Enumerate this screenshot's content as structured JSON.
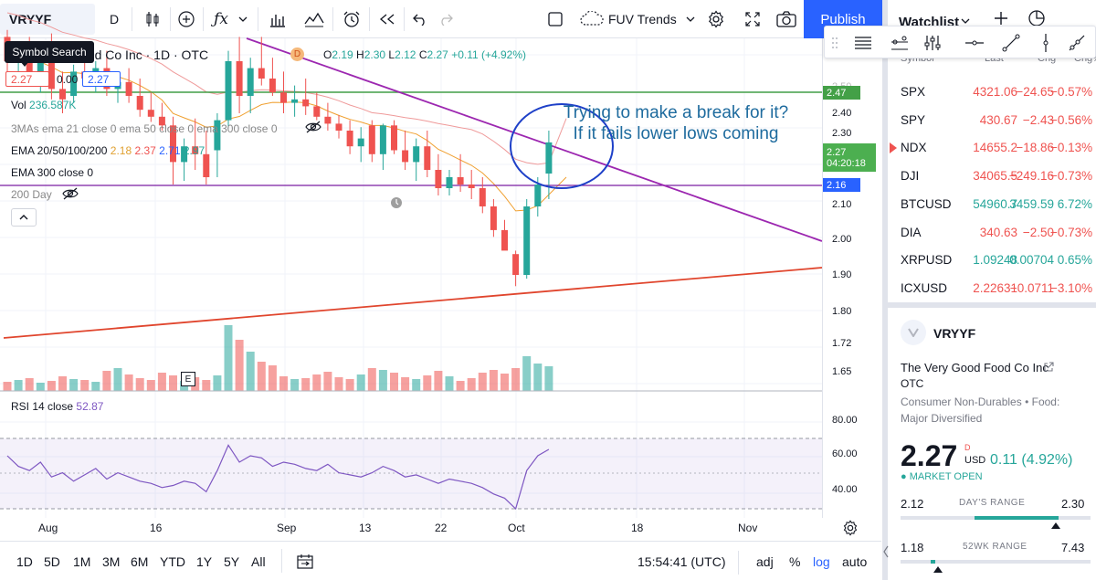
{
  "toolbar": {
    "symbol": "VRYYF",
    "interval": "D",
    "indicators_label": "FUV Trends",
    "publish_label": "Publish"
  },
  "tooltip": "Symbol Search",
  "legend": {
    "title": "od Food Co Inc · 1D · OTC",
    "o_label": "O",
    "o": "2.19",
    "h_label": "H",
    "h": "2.30",
    "l_label": "L",
    "l": "2.12",
    "c_label": "C",
    "c": "2.27",
    "change": "+0.11 (+4.92%)",
    "bid": "2.27",
    "spread": "0.00",
    "ask": "2.27",
    "vol_label": "Vol",
    "vol": "236.587K",
    "mas": "3MAs ema 21 close 0 ema 50 close 0 ema 300 close 0",
    "ema_label": "EMA 20/50/100/200",
    "ema_vals": [
      "2.18",
      "2.37",
      "2.71",
      "2.97"
    ],
    "ema300": "EMA 300 close 0",
    "day200": "200 Day",
    "rsi_label": "RSI 14 close",
    "rsi_val": "52.87",
    "earnings_marker": "E",
    "dividend_marker": "D"
  },
  "annotation": {
    "line1": "Trying to make a break for it?",
    "line2": "If it fails lower lows coming"
  },
  "price_axis": {
    "ticks": [
      "2.50",
      "2.40",
      "2.30",
      "2.20",
      "2.10",
      "2.00",
      "1.90",
      "1.80",
      "1.72",
      "1.65"
    ],
    "rsi_ticks": [
      "80.00",
      "60.00",
      "40.00"
    ],
    "label_green": "2.47",
    "label_last": "2.27",
    "label_countdown": "04:20:18",
    "label_purple": "2.16"
  },
  "time_axis": [
    "Aug",
    "16",
    "Sep",
    "13",
    "22",
    "Oct",
    "18",
    "Nov"
  ],
  "bottom_bar": {
    "ranges": [
      "1D",
      "5D",
      "1M",
      "3M",
      "6M",
      "YTD",
      "1Y",
      "5Y",
      "All"
    ],
    "clock": "15:54:41 (UTC)",
    "adj": "adj",
    "pct": "%",
    "log": "log",
    "auto": "auto"
  },
  "watchlist": {
    "title": "Watchlist",
    "columns": [
      "Symbol",
      "Last",
      "Chg",
      "Chg%"
    ],
    "rows": [
      {
        "symbol": "SPX",
        "last": "4321.06",
        "chg": "−24.65",
        "chgp": "−0.57%",
        "up": false
      },
      {
        "symbol": "SPY",
        "last": "430.67",
        "chg": "−2.43",
        "chgp": "−0.56%",
        "up": false
      },
      {
        "symbol": "NDX",
        "last": "14655.2",
        "chg": "−18.86",
        "chgp": "−0.13%",
        "up": false
      },
      {
        "symbol": "DJI",
        "last": "34065.5",
        "chg": "−249.16",
        "chgp": "−0.73%",
        "up": false
      },
      {
        "symbol": "BTCUSD",
        "last": "54960.7",
        "chg": "3459.59",
        "chgp": "6.72%",
        "up": true
      },
      {
        "symbol": "DIA",
        "last": "340.63",
        "chg": "−2.50",
        "chgp": "−0.73%",
        "up": false
      },
      {
        "symbol": "XRPUSD",
        "last": "1.09248",
        "chg": "0.00704",
        "chgp": "0.65%",
        "up": true
      },
      {
        "symbol": "ICXUSD",
        "last": "2.22631",
        "chg": "−0.0711",
        "chgp": "−3.10%",
        "up": false
      }
    ]
  },
  "details": {
    "symbol": "VRYYF",
    "name": "The Very Good Food Co Inc",
    "exchange": "OTC",
    "sector": "Consumer Non-Durables",
    "industry_line1": "Food:",
    "industry_line2": "Major Diversified",
    "price": "2.27",
    "price_sup": "D",
    "currency": "USD",
    "change": "0.11",
    "change_pct": "(4.92%)",
    "market_status": "MARKET OPEN",
    "day_low": "2.12",
    "day_range_label": "DAY'S RANGE",
    "day_high": "2.30",
    "wk_low": "1.18",
    "wk_range_label": "52WK RANGE",
    "wk_high": "7.43"
  },
  "colors": {
    "up": "#26a69a",
    "down": "#ef5350",
    "accent": "#2962ff",
    "trend_purple": "#9c27b0",
    "trend_red": "#e0452d",
    "support_green": "#43a047",
    "circle": "#1e40c8",
    "annotation": "#1e6b9e"
  }
}
